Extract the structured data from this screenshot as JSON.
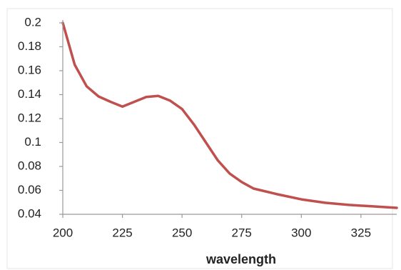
{
  "chart_data": {
    "type": "line",
    "x_label": "wavelength",
    "x": [
      200,
      205,
      210,
      215,
      220,
      225,
      230,
      235,
      240,
      245,
      250,
      255,
      260,
      265,
      270,
      275,
      280,
      290,
      300,
      310,
      320,
      330,
      340
    ],
    "values": [
      0.2,
      0.165,
      0.147,
      0.1385,
      0.134,
      0.13,
      0.134,
      0.138,
      0.139,
      0.135,
      0.128,
      0.115,
      0.1,
      0.085,
      0.074,
      0.067,
      0.0615,
      0.0567,
      0.0525,
      0.0496,
      0.0478,
      0.0466,
      0.0454
    ],
    "color": "#c0504d",
    "xlim": [
      200,
      340
    ],
    "xticks": [
      200,
      225,
      250,
      275,
      300,
      325
    ],
    "ylim": [
      0.04,
      0.2
    ],
    "yticks": [
      0.04,
      0.06,
      0.08,
      0.1,
      0.12,
      0.14,
      0.16,
      0.18,
      0.2
    ],
    "grid": false
  }
}
